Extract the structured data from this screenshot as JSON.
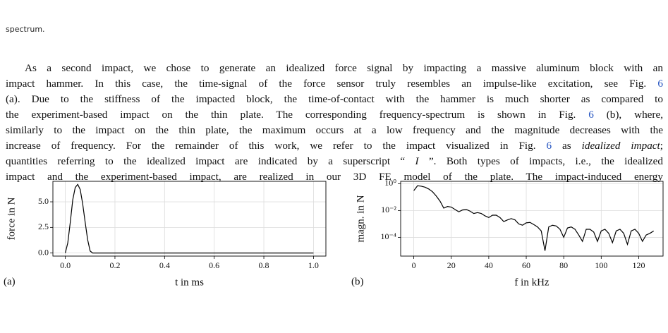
{
  "caption_end": "spectrum.",
  "paragraph": {
    "lines": [
      [
        {
          "text": "As a second impact, we chose to generate an idealized force signal by impacting a massive aluminum block with an"
        }
      ],
      [
        {
          "text": "impact hammer. In this case, the time-signal of the force sensor truly resembles an impulse-like excitation, see Fig. "
        },
        {
          "text": "6",
          "link": true
        }
      ],
      [
        {
          "text": "(a). Due to the stiffness of the impacted block, the time-of-contact with the hammer is much shorter as compared to"
        }
      ],
      [
        {
          "text": "the experiment-based impact on the thin plate. The corresponding frequency-spectrum is shown in Fig. "
        },
        {
          "text": "6",
          "link": true
        },
        {
          "text": " (b), where,"
        }
      ],
      [
        {
          "text": "similarly to the impact on the thin plate, the maximum occurs at a low frequency and the magnitude decreases with the"
        }
      ],
      [
        {
          "text": "increase of frequency. For the remainder of this work, we refer to the impact visualized in Fig. "
        },
        {
          "text": "6",
          "link": true
        },
        {
          "text": " as "
        },
        {
          "text": "idealized impact",
          "italic": true
        },
        {
          "text": ";"
        }
      ],
      [
        {
          "text": "quantities referring to the idealized impact are indicated by a superscript “ "
        },
        {
          "text": "I",
          "italic": true
        },
        {
          "text": " ”. Both types of impacts, i.e., the idealized"
        }
      ],
      [
        {
          "text": "impact and the experiment-based impact, are realized in our 3D FE model of the plate. The impact-induced energy"
        }
      ]
    ]
  },
  "figure": {
    "panels": [
      {
        "type": "line",
        "panel_label": "(a)",
        "x_label": "t in ms",
        "y_label": "force in N",
        "color": "#000000",
        "grid": true,
        "ylog": false,
        "x": [
          0,
          0.01,
          0.02,
          0.03,
          0.04,
          0.05,
          0.06,
          0.07,
          0.08,
          0.09,
          0.1,
          0.11,
          1.0
        ],
        "values": [
          0,
          1.0,
          3.0,
          5.2,
          6.4,
          6.7,
          6.2,
          4.8,
          3.0,
          1.3,
          0.2,
          0,
          0
        ],
        "xlim": [
          -0.05,
          1.05
        ],
        "ylim": [
          -0.3,
          7.0
        ],
        "xticks": [
          {
            "value": 0,
            "label": "0.0"
          },
          0.2,
          0.4,
          0.6,
          0.8,
          {
            "value": 1,
            "label": "1.0"
          }
        ],
        "yticks": [
          {
            "value": 0,
            "label": "0.0"
          },
          2.5,
          {
            "value": 5,
            "label": "5.0"
          }
        ]
      },
      {
        "type": "line",
        "panel_label": "(b)",
        "x_label": "f in kHz",
        "y_label": "magn. in N",
        "color": "#000000",
        "grid": true,
        "ylog": true,
        "x": [
          0,
          2,
          4,
          6,
          8,
          10,
          12,
          14,
          16,
          18,
          20,
          22,
          24,
          26,
          28,
          30,
          32,
          34,
          36,
          38,
          40,
          42,
          44,
          46,
          48,
          50,
          52,
          54,
          56,
          58,
          60,
          62,
          64,
          66,
          68,
          70,
          72,
          74,
          76,
          78,
          80,
          82,
          84,
          86,
          88,
          90,
          92,
          94,
          96,
          98,
          100,
          102,
          104,
          106,
          108,
          110,
          112,
          114,
          116,
          118,
          120,
          122,
          124,
          126,
          128
        ],
        "values": [
          0.3,
          0.7,
          0.65,
          0.55,
          0.4,
          0.25,
          0.12,
          0.05,
          0.015,
          0.02,
          0.018,
          0.012,
          0.008,
          0.011,
          0.012,
          0.009,
          0.006,
          0.007,
          0.006,
          0.004,
          0.003,
          0.0045,
          0.0045,
          0.003,
          0.0015,
          0.002,
          0.0025,
          0.002,
          0.001,
          0.0008,
          0.0012,
          0.0013,
          0.0009,
          0.0006,
          0.0003,
          1e-05,
          0.0006,
          0.0008,
          0.0007,
          0.0004,
          0.0001,
          0.0005,
          0.0006,
          0.0004,
          0.00015,
          5e-05,
          0.0004,
          0.0004,
          0.00025,
          5e-05,
          0.0003,
          0.0004,
          0.0002,
          4e-05,
          0.0003,
          0.0004,
          0.0002,
          3e-05,
          0.0003,
          0.0004,
          0.0002,
          5e-05,
          0.00015,
          0.0002,
          0.0003
        ],
        "xlim": [
          -7,
          133
        ],
        "ylim": [
          4e-06,
          1.5
        ],
        "xticks": [
          0,
          20,
          40,
          60,
          80,
          100,
          120
        ],
        "yticks": [
          {
            "value": 1,
            "label": "10⁰"
          },
          {
            "value": 0.01,
            "label": "10⁻²"
          },
          {
            "value": 0.0001,
            "label": "10⁻⁴"
          }
        ]
      }
    ]
  }
}
